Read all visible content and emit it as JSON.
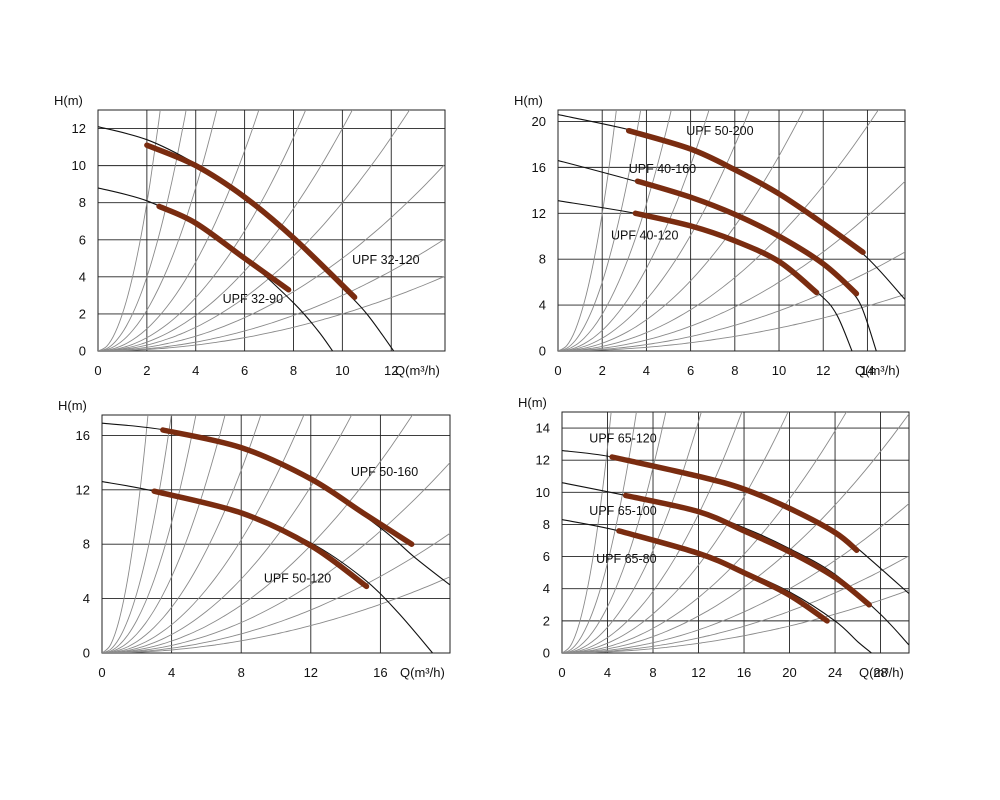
{
  "chart_data": [
    {
      "type": "line",
      "title": "",
      "xlabel": "Q(m³/h)",
      "ylabel": "H(m)",
      "xlim": [
        0,
        14.2
      ],
      "ylim": [
        0,
        13
      ],
      "xticks": [
        "0",
        "2",
        "4",
        "6",
        "8",
        "10",
        "12"
      ],
      "yticks": [
        "0",
        "2",
        "4",
        "6",
        "8",
        "10",
        "12"
      ],
      "system_curve_k": [
        2,
        1,
        0.55,
        0.3,
        0.18,
        0.12,
        0.08,
        0.05,
        0.03,
        0.02
      ],
      "series": [
        {
          "name": "UPF 32-120",
          "full_curve": {
            "x": [
              0,
              2,
              4,
              6,
              8,
              10,
              11,
              12.1
            ],
            "y": [
              12.1,
              11.4,
              10.1,
              8.4,
              6.1,
              3.4,
              2.0,
              0
            ]
          },
          "operating_range": {
            "x": [
              2,
              4,
              6,
              8,
              10.5
            ],
            "y": [
              11.1,
              10.0,
              8.3,
              6.1,
              2.9
            ]
          },
          "label_at": [
            10.4,
            4.7
          ]
        },
        {
          "name": "UPF 32-90",
          "full_curve": {
            "x": [
              0,
              2,
              4,
              6,
              8,
              9,
              9.6
            ],
            "y": [
              8.8,
              8.1,
              6.8,
              5.0,
              2.6,
              1.1,
              0
            ]
          },
          "operating_range": {
            "x": [
              2.5,
              4,
              6,
              7.8
            ],
            "y": [
              7.8,
              6.9,
              5.0,
              3.3
            ]
          },
          "label_at": [
            5.1,
            2.6
          ]
        }
      ]
    },
    {
      "type": "line",
      "title": "",
      "xlabel": "Q(m³/h)",
      "ylabel": "H(m)",
      "xlim": [
        0,
        15.7
      ],
      "ylim": [
        0,
        21
      ],
      "xticks": [
        "0",
        "2",
        "4",
        "6",
        "8",
        "10",
        "12",
        "14"
      ],
      "yticks": [
        "0",
        "4",
        "8",
        "12",
        "16",
        "20"
      ],
      "system_curve_k": [
        3,
        1.5,
        0.8,
        0.45,
        0.28,
        0.17,
        0.1,
        0.06,
        0.035,
        0.02
      ],
      "series": [
        {
          "name": "UPF 50-200",
          "full_curve": {
            "x": [
              0,
              3.4,
              6,
              8,
              10,
              12,
              14,
              15.7
            ],
            "y": [
              20.6,
              19.2,
              17.6,
              15.8,
              13.7,
              11.2,
              8.1,
              4.5
            ]
          },
          "operating_range": {
            "x": [
              3.2,
              6,
              8,
              10,
              12,
              13.8
            ],
            "y": [
              19.2,
              17.6,
              15.8,
              13.7,
              11.1,
              8.6
            ]
          },
          "label_at": [
            5.8,
            18.8
          ]
        },
        {
          "name": "UPF 40-160",
          "full_curve": {
            "x": [
              0,
              3.5,
              6,
              8,
              10,
              12,
              13,
              13.7,
              14.4
            ],
            "y": [
              16.6,
              14.8,
              13.4,
              11.9,
              10.0,
              7.6,
              5.7,
              4.0,
              0
            ]
          },
          "operating_range": {
            "x": [
              3.6,
              6,
              8,
              10,
              12,
              13.5
            ],
            "y": [
              14.8,
              13.4,
              11.9,
              10.0,
              7.6,
              5.0
            ]
          },
          "label_at": [
            3.2,
            15.5
          ]
        },
        {
          "name": "UPF 40-120",
          "full_curve": {
            "x": [
              0,
              3.5,
              6,
              8,
              10,
              11.8,
              12.6,
              13.3
            ],
            "y": [
              13.1,
              12.0,
              10.9,
              9.6,
              7.7,
              5.0,
              3.2,
              0
            ]
          },
          "operating_range": {
            "x": [
              3.5,
              6,
              8,
              10,
              11.7
            ],
            "y": [
              12.0,
              10.9,
              9.6,
              7.8,
              5.1
            ]
          },
          "label_at": [
            2.4,
            9.7
          ]
        }
      ]
    },
    {
      "type": "line",
      "title": "",
      "xlabel": "Q(m³/h)",
      "ylabel": "H(m)",
      "xlim": [
        0,
        20
      ],
      "ylim": [
        0,
        17.5
      ],
      "xticks": [
        "0",
        "4",
        "8",
        "12",
        "16"
      ],
      "yticks": [
        "0",
        "4",
        "8",
        "12",
        "16"
      ],
      "system_curve_k": [
        2.5,
        1.1,
        0.6,
        0.35,
        0.21,
        0.13,
        0.085,
        0.055,
        0.035,
        0.022,
        0.014
      ],
      "series": [
        {
          "name": "UPF 50-160",
          "full_curve": {
            "x": [
              0,
              3.6,
              8,
              12,
              16,
              18,
              20
            ],
            "y": [
              16.9,
              16.4,
              15.1,
              12.8,
              9.2,
              7.0,
              5.0
            ]
          },
          "operating_range": {
            "x": [
              3.5,
              8,
              12,
              15,
              17.8
            ],
            "y": [
              16.4,
              15.1,
              12.8,
              10.3,
              8.0
            ]
          },
          "label_at": [
            14.3,
            13.0
          ]
        },
        {
          "name": "UPF 50-120",
          "full_curve": {
            "x": [
              0,
              3,
              8,
              12,
              15,
              17,
              19
            ],
            "y": [
              12.6,
              11.9,
              10.3,
              8.1,
              5.5,
              3.0,
              0
            ]
          },
          "operating_range": {
            "x": [
              3,
              8,
              12,
              15.2
            ],
            "y": [
              11.9,
              10.3,
              7.9,
              4.9
            ]
          },
          "label_at": [
            9.3,
            5.2
          ]
        }
      ]
    },
    {
      "type": "line",
      "title": "",
      "xlabel": "Q(m³/h)",
      "ylabel": "H(m)",
      "xlim": [
        0,
        30.5
      ],
      "ylim": [
        0,
        15
      ],
      "xticks": [
        "0",
        "4",
        "8",
        "12",
        "16",
        "20",
        "24",
        "28"
      ],
      "yticks": [
        "0",
        "2",
        "4",
        "6",
        "8",
        "10",
        "12",
        "14"
      ],
      "system_curve_k": [
        0.8,
        0.35,
        0.18,
        0.1,
        0.06,
        0.038,
        0.024,
        0.016,
        0.01,
        0.0065,
        0.0042
      ],
      "series": [
        {
          "name": "UPF 65-120",
          "full_curve": {
            "x": [
              0,
              4.4,
              12,
              16,
              20,
              24,
              26,
              30.5
            ],
            "y": [
              12.6,
              12.2,
              11.0,
              10.2,
              9.0,
              7.6,
              6.5,
              3.7
            ]
          },
          "operating_range": {
            "x": [
              4.4,
              12,
              16,
              20,
              24,
              25.9
            ],
            "y": [
              12.2,
              11.0,
              10.2,
              9.0,
              7.5,
              6.4
            ]
          },
          "label_at": [
            2.4,
            13.1
          ]
        },
        {
          "name": "UPF 65-100",
          "full_curve": {
            "x": [
              0,
              5.6,
              12,
              16,
              20,
              24,
              28,
              30.5
            ],
            "y": [
              10.6,
              9.8,
              8.8,
              7.8,
              6.5,
              4.9,
              2.4,
              0.5
            ]
          },
          "operating_range": {
            "x": [
              5.6,
              12,
              16,
              20,
              24,
              27
            ],
            "y": [
              9.8,
              8.8,
              7.6,
              6.3,
              4.7,
              3.0
            ]
          },
          "label_at": [
            2.4,
            8.6
          ]
        },
        {
          "name": "UPF 65-80",
          "full_curve": {
            "x": [
              0,
              5,
              12,
              16,
              20,
              24,
              26,
              27.2
            ],
            "y": [
              8.3,
              7.6,
              6.2,
              5.1,
              3.8,
              2.0,
              0.7,
              0
            ]
          },
          "operating_range": {
            "x": [
              5,
              12,
              16,
              20,
              23.3
            ],
            "y": [
              7.6,
              6.2,
              5.0,
              3.6,
              2.0
            ]
          },
          "label_at": [
            3.0,
            5.6
          ]
        }
      ]
    }
  ]
}
